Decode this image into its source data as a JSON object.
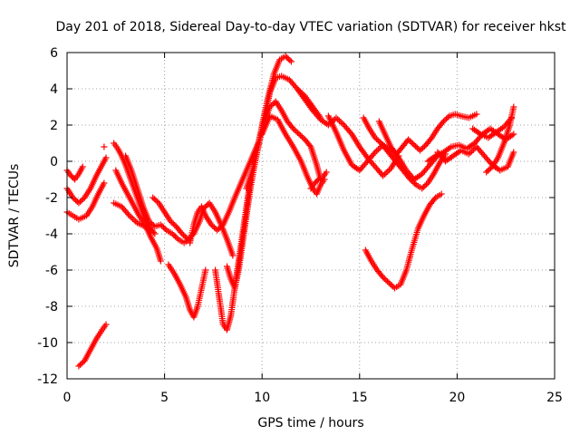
{
  "chart_data": {
    "type": "scatter",
    "title": "Day 201 of 2018, Sidereal Day-to-day VTEC variation (SDTVAR) for receiver hkst",
    "xlabel": "GPS time / hours",
    "ylabel": "SDTVAR / TECUs",
    "xlim": [
      0,
      25
    ],
    "ylim": [
      -12,
      6
    ],
    "xticks": [
      "0",
      "5",
      "10",
      "15",
      "20",
      "25"
    ],
    "yticks": [
      "6",
      "4",
      "2",
      "0",
      "-2",
      "-4",
      "-6",
      "-8",
      "-10",
      "-12"
    ],
    "grid": true,
    "marker": "+",
    "color": "#ff0000",
    "series": [
      {
        "x": [
          0.0,
          0.2,
          0.4,
          0.6,
          0.8
        ],
        "y": [
          -0.5,
          -0.8,
          -1.0,
          -0.7,
          -0.3
        ]
      },
      {
        "x": [
          0.0,
          0.3,
          0.6,
          0.9,
          1.2,
          1.5,
          1.8,
          2.0
        ],
        "y": [
          -1.5,
          -2.0,
          -2.3,
          -2.0,
          -1.5,
          -0.8,
          -0.2,
          0.2
        ]
      },
      {
        "x": [
          0.0,
          0.3,
          0.6,
          1.0,
          1.3,
          1.6,
          1.9
        ],
        "y": [
          -2.8,
          -3.0,
          -3.2,
          -3.0,
          -2.5,
          -1.8,
          -1.2
        ]
      },
      {
        "x": [
          0.6,
          0.9,
          1.2,
          1.5,
          1.8,
          2.0
        ],
        "y": [
          -11.3,
          -11.0,
          -10.4,
          -9.8,
          -9.3,
          -9.0
        ]
      },
      {
        "x": [
          1.9
        ],
        "y": [
          0.8
        ]
      },
      {
        "x": [
          2.4,
          2.6,
          2.8,
          3.0,
          3.2,
          3.4,
          3.6,
          3.8,
          4.0,
          4.2,
          4.5
        ],
        "y": [
          1.0,
          0.7,
          0.3,
          -0.2,
          -0.8,
          -1.4,
          -2.0,
          -2.6,
          -3.2,
          -3.6,
          -4.0
        ]
      },
      {
        "x": [
          2.5,
          2.8,
          3.1,
          3.4,
          3.7,
          4.0,
          4.3,
          4.6,
          4.8
        ],
        "y": [
          -0.5,
          -1.2,
          -1.8,
          -2.4,
          -3.0,
          -3.5,
          -4.2,
          -4.8,
          -5.5
        ]
      },
      {
        "x": [
          2.4,
          2.8,
          3.2,
          3.6,
          4.0,
          4.3
        ],
        "y": [
          -2.3,
          -2.5,
          -3.0,
          -3.4,
          -3.6,
          -3.8
        ]
      },
      {
        "x": [
          3.0,
          3.3,
          3.6,
          3.9,
          4.2,
          4.5,
          4.8,
          5.1,
          5.4,
          5.7,
          6.0,
          6.3
        ],
        "y": [
          0.3,
          -0.5,
          -1.5,
          -2.5,
          -3.3,
          -3.6,
          -3.5,
          -3.8,
          -4.0,
          -4.3,
          -4.5,
          -4.3
        ]
      },
      {
        "x": [
          4.4,
          4.7,
          5.0,
          5.3,
          5.6,
          5.9,
          6.2,
          6.5,
          6.8,
          7.0,
          7.3,
          7.6,
          7.9,
          8.2,
          8.5
        ],
        "y": [
          -2.0,
          -2.3,
          -2.8,
          -3.3,
          -3.6,
          -4.0,
          -4.3,
          -4.0,
          -3.3,
          -2.6,
          -2.3,
          -2.8,
          -3.5,
          -4.3,
          -5.2
        ]
      },
      {
        "x": [
          5.2,
          5.5,
          5.8,
          6.1,
          6.3,
          6.5,
          6.7,
          6.9,
          7.1
        ],
        "y": [
          -5.7,
          -6.2,
          -6.8,
          -7.5,
          -8.2,
          -8.6,
          -8.0,
          -7.0,
          -6.0
        ]
      },
      {
        "x": [
          6.3,
          6.5,
          6.7,
          6.9,
          7.1,
          7.4,
          7.7,
          8.0,
          8.3,
          8.6,
          8.8,
          9.0,
          9.2,
          9.4,
          9.6,
          9.8
        ],
        "y": [
          -4.5,
          -3.5,
          -2.8,
          -2.5,
          -3.0,
          -3.5,
          -3.8,
          -3.5,
          -2.8,
          -2.0,
          -1.5,
          -1.0,
          -0.5,
          0.0,
          0.5,
          1.0
        ]
      },
      {
        "x": [
          7.6,
          7.8,
          8.0,
          8.2,
          8.4,
          8.6,
          8.8,
          9.0,
          9.2,
          9.4
        ],
        "y": [
          -6.0,
          -7.5,
          -9.0,
          -9.3,
          -8.5,
          -7.0,
          -5.5,
          -4.0,
          -2.5,
          -1.0
        ]
      },
      {
        "x": [
          8.2,
          8.4,
          8.6,
          8.8,
          9.0,
          9.2,
          9.4,
          9.6,
          9.8,
          10.0,
          10.3,
          10.6,
          10.9,
          11.2,
          11.5
        ],
        "y": [
          -5.8,
          -6.5,
          -7.0,
          -6.0,
          -4.5,
          -3.0,
          -1.5,
          -0.3,
          0.8,
          2.0,
          3.5,
          4.8,
          5.6,
          5.8,
          5.5
        ]
      },
      {
        "x": [
          9.2,
          9.5,
          9.8,
          10.1,
          10.4,
          10.7,
          11.0,
          11.4,
          11.8,
          12.2,
          12.6,
          13.0
        ],
        "y": [
          -1.5,
          -0.5,
          0.8,
          2.2,
          3.8,
          4.6,
          4.7,
          4.5,
          4.0,
          3.6,
          3.0,
          2.4
        ]
      },
      {
        "x": [
          9.5,
          9.8,
          10.1,
          10.4,
          10.7,
          11.0,
          11.3,
          11.6,
          11.9,
          12.2,
          12.5,
          12.8,
          13.0
        ],
        "y": [
          0.0,
          1.0,
          2.2,
          3.0,
          3.3,
          2.8,
          2.2,
          1.8,
          1.5,
          1.2,
          0.8,
          -0.2,
          -1.0
        ]
      },
      {
        "x": [
          10.0,
          10.4,
          10.8,
          11.2,
          11.6,
          12.0,
          12.3,
          12.6,
          12.8,
          13.0,
          13.2
        ],
        "y": [
          1.5,
          2.5,
          2.3,
          1.5,
          0.8,
          0.0,
          -0.8,
          -1.5,
          -1.8,
          -1.3,
          -1.0
        ]
      },
      {
        "x": [
          11.8,
          12.2,
          12.6,
          13.0,
          13.4,
          13.8,
          14.2,
          14.6,
          15.0,
          15.4,
          15.8,
          16.2,
          16.6,
          17.0
        ],
        "y": [
          4.0,
          3.4,
          2.8,
          2.3,
          2.0,
          2.4,
          2.0,
          1.5,
          0.8,
          0.2,
          -0.3,
          -0.8,
          -0.4,
          0.3
        ]
      },
      {
        "x": [
          13.4,
          13.8,
          14.2,
          14.6,
          15.0,
          15.4,
          15.8,
          16.2,
          16.6,
          17.0,
          17.4,
          17.8,
          18.2,
          18.6,
          19.0
        ],
        "y": [
          2.5,
          1.6,
          0.6,
          -0.2,
          -0.5,
          0.0,
          0.5,
          0.9,
          0.6,
          0.2,
          -0.5,
          -1.0,
          -0.7,
          -0.2,
          0.3
        ]
      },
      {
        "x": [
          15.2,
          15.5,
          15.8,
          16.1,
          16.4,
          16.7,
          17.0,
          17.3,
          17.6,
          17.9,
          18.2,
          18.5,
          18.8,
          19.1,
          19.4
        ],
        "y": [
          2.4,
          1.8,
          1.3,
          1.0,
          0.6,
          0.2,
          -0.2,
          -0.6,
          -1.0,
          -1.3,
          -1.5,
          -1.2,
          -0.7,
          -0.1,
          0.4
        ]
      },
      {
        "x": [
          16.0,
          16.3,
          16.6,
          16.9,
          17.2,
          17.5,
          17.8,
          18.1,
          18.4,
          18.7,
          19.0,
          19.3,
          19.6,
          19.9,
          20.2,
          20.6,
          21.0
        ],
        "y": [
          2.2,
          1.5,
          0.8,
          0.4,
          0.8,
          1.2,
          0.9,
          0.6,
          0.9,
          1.3,
          1.8,
          2.2,
          2.5,
          2.6,
          2.5,
          2.4,
          2.6
        ]
      },
      {
        "x": [
          15.3,
          15.6,
          15.9,
          16.2,
          16.5,
          16.8,
          17.1,
          17.4,
          17.7,
          18.0,
          18.3,
          18.6,
          18.9,
          19.2
        ],
        "y": [
          -4.9,
          -5.5,
          -6.0,
          -6.4,
          -6.7,
          -7.0,
          -6.8,
          -6.0,
          -4.8,
          -3.7,
          -3.0,
          -2.4,
          -2.0,
          -1.8
        ]
      },
      {
        "x": [
          12.5,
          12.7,
          12.9,
          13.1,
          13.3
        ],
        "y": [
          -1.5,
          -1.2,
          -1.0,
          -0.9,
          -0.6
        ]
      },
      {
        "x": [
          18.5,
          18.9,
          19.3,
          19.7,
          20.1,
          20.5,
          20.9,
          21.3,
          21.7,
          22.1,
          22.5,
          22.9
        ],
        "y": [
          0.0,
          0.3,
          0.5,
          0.8,
          0.9,
          0.7,
          1.0,
          1.5,
          1.8,
          1.5,
          1.2,
          1.5
        ]
      },
      {
        "x": [
          19.0,
          19.4,
          19.8,
          20.2,
          20.6,
          21.0,
          21.4,
          21.8,
          22.2,
          22.6,
          22.9
        ],
        "y": [
          0.5,
          0.0,
          0.3,
          0.6,
          0.4,
          0.8,
          0.3,
          -0.2,
          -0.5,
          -0.3,
          0.5
        ]
      },
      {
        "x": [
          21.5,
          21.8,
          22.1,
          22.4,
          22.7,
          22.9
        ],
        "y": [
          -0.6,
          -0.3,
          0.2,
          1.0,
          2.0,
          3.0
        ]
      },
      {
        "x": [
          20.8,
          21.2,
          21.6,
          22.0,
          22.4,
          22.8
        ],
        "y": [
          1.8,
          1.5,
          1.3,
          1.6,
          1.9,
          2.4
        ]
      }
    ]
  }
}
